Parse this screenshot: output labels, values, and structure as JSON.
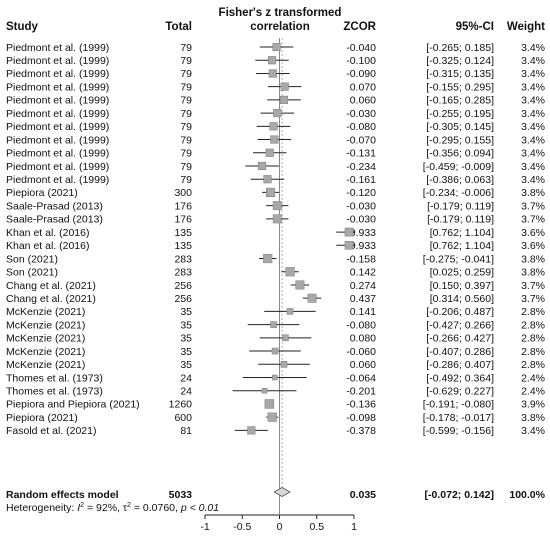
{
  "chart_data": {
    "type": "forest",
    "headers": {
      "study": "Study",
      "total": "Total",
      "plot_title_line1": "Fisher's z transformed",
      "plot_title_line2": "correlation",
      "zcor": "ZCOR",
      "ci": "95%-CI",
      "weight": "Weight"
    },
    "rows": [
      {
        "study": "Piedmont et al. (1999)",
        "total": "79",
        "zcor": -0.04,
        "lower": -0.265,
        "upper": 0.185,
        "zcor_text": "-0.040",
        "ci_text": "[-0.265; 0.185]",
        "weight": "3.4%"
      },
      {
        "study": "Piedmont et al. (1999)",
        "total": "79",
        "zcor": -0.1,
        "lower": -0.325,
        "upper": 0.124,
        "zcor_text": "-0.100",
        "ci_text": "[-0.325; 0.124]",
        "weight": "3.4%"
      },
      {
        "study": "Piedmont et al. (1999)",
        "total": "79",
        "zcor": -0.09,
        "lower": -0.315,
        "upper": 0.135,
        "zcor_text": "-0.090",
        "ci_text": "[-0.315; 0.135]",
        "weight": "3.4%"
      },
      {
        "study": "Piedmont et al. (1999)",
        "total": "79",
        "zcor": 0.07,
        "lower": -0.155,
        "upper": 0.295,
        "zcor_text": "0.070",
        "ci_text": "[-0.155; 0.295]",
        "weight": "3.4%"
      },
      {
        "study": "Piedmont et al. (1999)",
        "total": "79",
        "zcor": 0.06,
        "lower": -0.165,
        "upper": 0.285,
        "zcor_text": "0.060",
        "ci_text": "[-0.165; 0.285]",
        "weight": "3.4%"
      },
      {
        "study": "Piedmont et al. (1999)",
        "total": "79",
        "zcor": -0.03,
        "lower": -0.255,
        "upper": 0.195,
        "zcor_text": "-0.030",
        "ci_text": "[-0.255; 0.195]",
        "weight": "3.4%"
      },
      {
        "study": "Piedmont et al. (1999)",
        "total": "79",
        "zcor": -0.08,
        "lower": -0.305,
        "upper": 0.145,
        "zcor_text": "-0.080",
        "ci_text": "[-0.305; 0.145]",
        "weight": "3.4%"
      },
      {
        "study": "Piedmont et al. (1999)",
        "total": "79",
        "zcor": -0.07,
        "lower": -0.295,
        "upper": 0.155,
        "zcor_text": "-0.070",
        "ci_text": "[-0.295; 0.155]",
        "weight": "3.4%"
      },
      {
        "study": "Piedmont et al. (1999)",
        "total": "79",
        "zcor": -0.131,
        "lower": -0.356,
        "upper": 0.094,
        "zcor_text": "-0.131",
        "ci_text": "[-0.356; 0.094]",
        "weight": "3.4%"
      },
      {
        "study": "Piedmont et al. (1999)",
        "total": "79",
        "zcor": -0.234,
        "lower": -0.459,
        "upper": -0.009,
        "zcor_text": "-0.234",
        "ci_text": "[-0.459; -0.009]",
        "weight": "3.4%"
      },
      {
        "study": "Piedmont et al. (1999)",
        "total": "79",
        "zcor": -0.161,
        "lower": -0.386,
        "upper": 0.063,
        "zcor_text": "-0.161",
        "ci_text": "[-0.386; 0.063]",
        "weight": "3.4%"
      },
      {
        "study": "Piepiora (2021)",
        "total": "300",
        "zcor": -0.12,
        "lower": -0.234,
        "upper": -0.006,
        "zcor_text": "-0.120",
        "ci_text": "[-0.234; -0.006]",
        "weight": "3.8%"
      },
      {
        "study": "Saale-Prasad (2013)",
        "total": "176",
        "zcor": -0.03,
        "lower": -0.179,
        "upper": 0.119,
        "zcor_text": "-0.030",
        "ci_text": "[-0.179; 0.119]",
        "weight": "3.7%"
      },
      {
        "study": "Saale-Prasad (2013)",
        "total": "176",
        "zcor": -0.03,
        "lower": -0.179,
        "upper": 0.119,
        "zcor_text": "-0.030",
        "ci_text": "[-0.179; 0.119]",
        "weight": "3.7%"
      },
      {
        "study": "Khan et al. (2016)",
        "total": "135",
        "zcor": 0.933,
        "lower": 0.762,
        "upper": 1.104,
        "zcor_text": "0.933",
        "ci_text": "[0.762; 1.104]",
        "weight": "3.6%"
      },
      {
        "study": "Khan et al. (2016)",
        "total": "135",
        "zcor": 0.933,
        "lower": 0.762,
        "upper": 1.104,
        "zcor_text": "0.933",
        "ci_text": "[0.762; 1.104]",
        "weight": "3.6%"
      },
      {
        "study": "Son (2021)",
        "total": "283",
        "zcor": -0.158,
        "lower": -0.275,
        "upper": -0.041,
        "zcor_text": "-0.158",
        "ci_text": "[-0.275; -0.041]",
        "weight": "3.8%"
      },
      {
        "study": "Son (2021)",
        "total": "283",
        "zcor": 0.142,
        "lower": 0.025,
        "upper": 0.259,
        "zcor_text": "0.142",
        "ci_text": "[0.025; 0.259]",
        "weight": "3.8%"
      },
      {
        "study": "Chang et al. (2021)",
        "total": "256",
        "zcor": 0.274,
        "lower": 0.15,
        "upper": 0.397,
        "zcor_text": "0.274",
        "ci_text": "[0.150; 0.397]",
        "weight": "3.7%"
      },
      {
        "study": "Chang et al. (2021)",
        "total": "256",
        "zcor": 0.437,
        "lower": 0.314,
        "upper": 0.56,
        "zcor_text": "0.437",
        "ci_text": "[0.314; 0.560]",
        "weight": "3.7%"
      },
      {
        "study": "McKenzie (2021)",
        "total": "35",
        "zcor": 0.141,
        "lower": -0.206,
        "upper": 0.487,
        "zcor_text": "0.141",
        "ci_text": "[-0.206; 0.487]",
        "weight": "2.8%"
      },
      {
        "study": "McKenzie (2021)",
        "total": "35",
        "zcor": -0.08,
        "lower": -0.427,
        "upper": 0.266,
        "zcor_text": "-0.080",
        "ci_text": "[-0.427; 0.266]",
        "weight": "2.8%"
      },
      {
        "study": "McKenzie (2021)",
        "total": "35",
        "zcor": 0.08,
        "lower": -0.266,
        "upper": 0.427,
        "zcor_text": "0.080",
        "ci_text": "[-0.266; 0.427]",
        "weight": "2.8%"
      },
      {
        "study": "McKenzie (2021)",
        "total": "35",
        "zcor": -0.06,
        "lower": -0.407,
        "upper": 0.286,
        "zcor_text": "-0.060",
        "ci_text": "[-0.407; 0.286]",
        "weight": "2.8%"
      },
      {
        "study": "McKenzie (2021)",
        "total": "35",
        "zcor": 0.06,
        "lower": -0.286,
        "upper": 0.407,
        "zcor_text": "0.060",
        "ci_text": "[-0.286; 0.407]",
        "weight": "2.8%"
      },
      {
        "study": "Thomes et al. (1973)",
        "total": "24",
        "zcor": -0.064,
        "lower": -0.492,
        "upper": 0.364,
        "zcor_text": "-0.064",
        "ci_text": "[-0.492; 0.364]",
        "weight": "2.4%"
      },
      {
        "study": "Thomes et al. (1973)",
        "total": "24",
        "zcor": -0.201,
        "lower": -0.629,
        "upper": 0.227,
        "zcor_text": "-0.201",
        "ci_text": "[-0.629; 0.227]",
        "weight": "2.4%"
      },
      {
        "study": "Piepiora and Piepiora (2021)",
        "total": "1260",
        "zcor": -0.136,
        "lower": -0.191,
        "upper": -0.08,
        "zcor_text": "-0.136",
        "ci_text": "[-0.191; -0.080]",
        "weight": "3.9%"
      },
      {
        "study": "Piepiora (2021)",
        "total": "600",
        "zcor": -0.098,
        "lower": -0.178,
        "upper": -0.017,
        "zcor_text": "-0.098",
        "ci_text": "[-0.178; -0.017]",
        "weight": "3.8%"
      },
      {
        "study": "Fasold et al. (2021)",
        "total": "81",
        "zcor": -0.378,
        "lower": -0.599,
        "upper": -0.156,
        "zcor_text": "-0.378",
        "ci_text": "[-0.599; -0.156]",
        "weight": "3.4%"
      }
    ],
    "summary": {
      "label": "Random effects model",
      "total": "5033",
      "zcor": 0.035,
      "lower": -0.072,
      "upper": 0.142,
      "zcor_text": "0.035",
      "ci_text": "[-0.072; 0.142]",
      "weight": "100.0%"
    },
    "heterogeneity": {
      "prefix": "Heterogeneity: ",
      "i2_symbol": "I",
      "i2_exp": "2",
      "i2_value": " = 92%, ",
      "tau2_symbol": "τ",
      "tau2_exp": "2",
      "tau2_value": " = 0.0760, ",
      "p_text": "p < 0.01"
    },
    "x_axis": {
      "range": [
        -1,
        1
      ],
      "ticks": [
        -1,
        -0.5,
        0,
        0.5,
        1
      ],
      "tick_labels": [
        "-1",
        "-0.5",
        "0",
        "0.5",
        "1"
      ]
    },
    "colors": {
      "square_fill": "#a8a8a8",
      "square_stroke": "#7a7a7a",
      "diamond_fill": "#d8d8d8",
      "line": "#222222",
      "null_line": "#888888"
    }
  }
}
